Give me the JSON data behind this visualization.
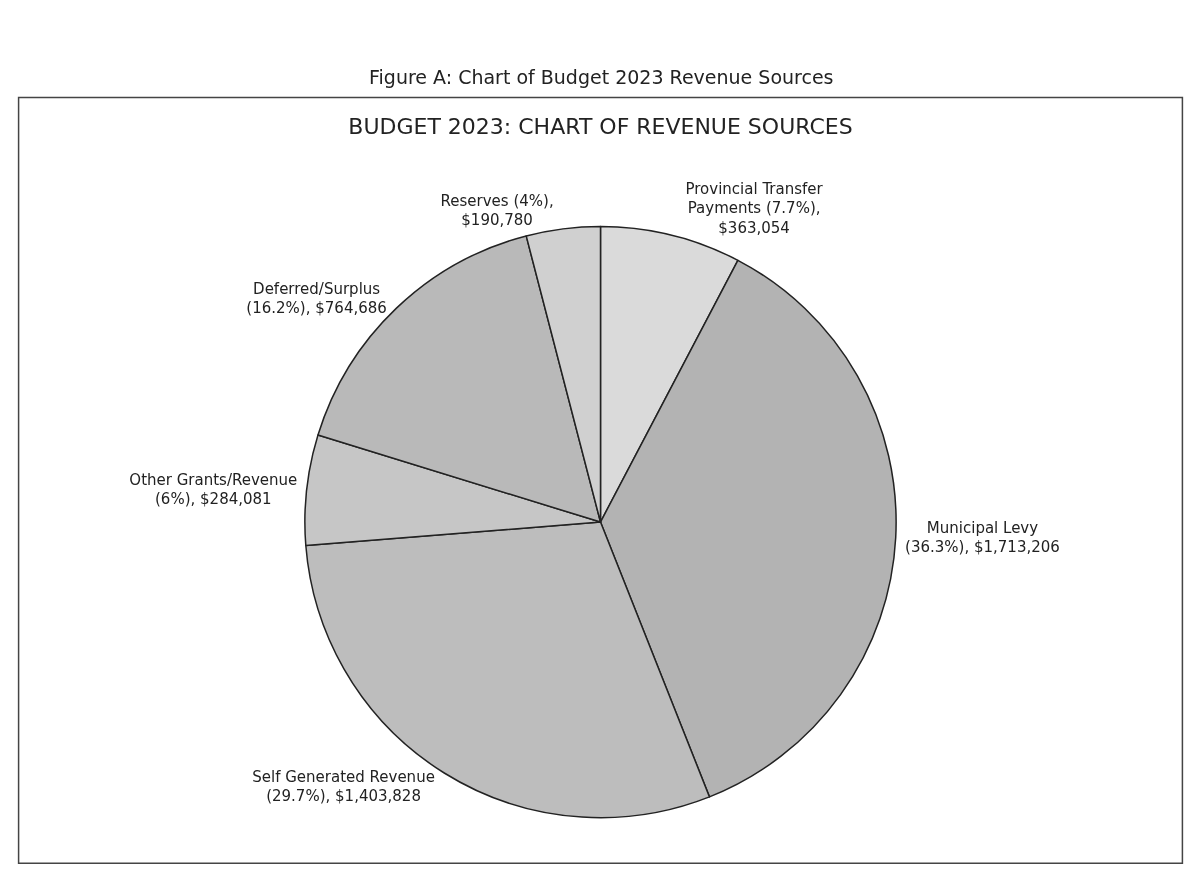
{
  "chart_data": {
    "type": "pie",
    "title": "BUDGET 2023: CHART OF REVENUE SOURCES",
    "annotations": [
      "Figure A: Chart of Budget 2023 Revenue Sources"
    ],
    "categories": [
      "Provincial Transfer Payments",
      "Municipal Levy",
      "Self Generated Revenue",
      "Other Grants/Revenue",
      "Deferred/Surplus",
      "Reserves"
    ],
    "values": [
      363054,
      1713206,
      1403828,
      284081,
      764686,
      190780
    ],
    "value_labels": [
      "(7.7%), $363,054",
      "(36.3%), $1,713,206",
      "(29.7%), $1,403,828",
      "(6%), $284,081",
      "(16.2%), $764,686",
      "(4%), $190,780"
    ],
    "colors": [
      "#dadada",
      "#b3b3b3",
      "#bdbdbd",
      "#c6c6c6",
      "#b9b9b9",
      "#d0d0d0"
    ],
    "legend": false
  }
}
